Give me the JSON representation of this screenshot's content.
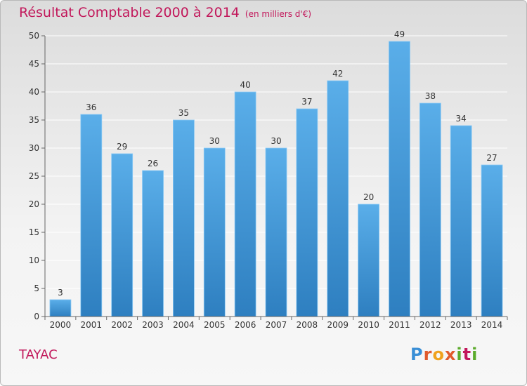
{
  "title": "Résultat Comptable 2000 à 2014",
  "subtitle": "(en milliers d'€)",
  "commune": "TAYAC",
  "logo_text": "Proxiti",
  "colors": {
    "title": "#c2185b",
    "bar_top": "#5aaee9",
    "bar_bottom": "#2e7fc0",
    "axis": "#666666",
    "grid": "#ffffff"
  },
  "chart_data": {
    "type": "bar",
    "categories": [
      "2000",
      "2001",
      "2002",
      "2003",
      "2004",
      "2005",
      "2006",
      "2007",
      "2008",
      "2009",
      "2010",
      "2011",
      "2012",
      "2013",
      "2014"
    ],
    "values": [
      3,
      36,
      29,
      26,
      35,
      30,
      40,
      30,
      37,
      42,
      20,
      49,
      38,
      34,
      27
    ],
    "ylim": [
      0,
      50
    ],
    "yticks": [
      0,
      5,
      10,
      15,
      20,
      25,
      30,
      35,
      40,
      45,
      50
    ],
    "grid": true,
    "data_labels": true
  }
}
